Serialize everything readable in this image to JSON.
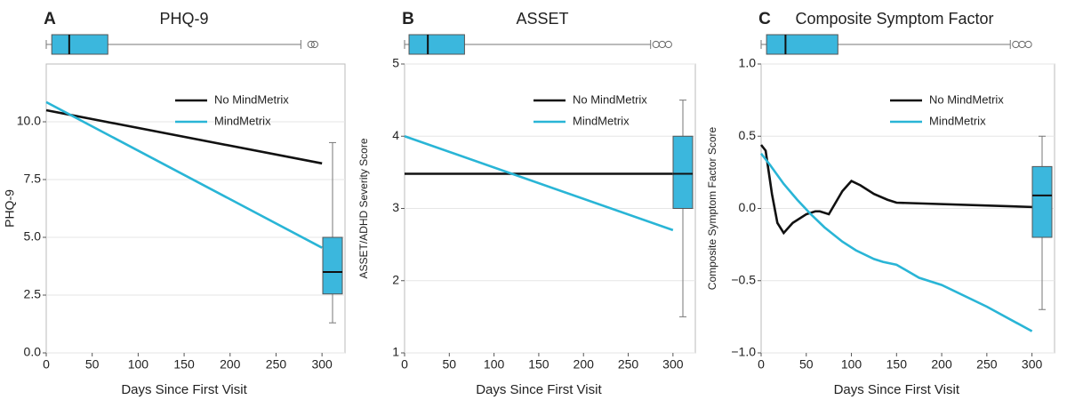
{
  "chart_data": [
    {
      "type": "line",
      "panel": "A",
      "title": "PHQ-9",
      "xlabel": "Days Since First Visit",
      "ylabel": "PHQ-9",
      "xlim": [
        0,
        325
      ],
      "xticks": [
        0,
        50,
        100,
        150,
        200,
        250,
        300
      ],
      "ylim": [
        0,
        12.5
      ],
      "yticks": [
        {
          "value": 0,
          "label": "0.0"
        },
        {
          "value": 2.5,
          "label": "2.5"
        },
        {
          "value": 5,
          "label": "5.0"
        },
        {
          "value": 7.5,
          "label": "7.5"
        },
        {
          "value": 10,
          "label": "10.0"
        }
      ],
      "grid": true,
      "legend": "upper right",
      "series": [
        {
          "name": "No MindMetrix",
          "color": "#111111",
          "x": [
            0,
            300
          ],
          "values": [
            10.5,
            8.2
          ]
        },
        {
          "name": "MindMetrix",
          "color": "#29b5d6",
          "x": [
            0,
            300
          ],
          "values": [
            10.85,
            4.55
          ]
        }
      ],
      "boxplot_y": {
        "color": "#3bb7dd",
        "whisker_low": 1.3,
        "q1": 2.55,
        "median": 3.5,
        "q3": 5.0,
        "whisker_high": 9.1
      },
      "boxplot_x": {
        "color": "#3bb7dd",
        "whisker_low": 0,
        "q1": 6,
        "median": 25,
        "q3": 67,
        "whisker_high": 277,
        "outliers": [
          288,
          292
        ]
      }
    },
    {
      "type": "line",
      "panel": "B",
      "title": "ASSET",
      "xlabel": "Days Since First Visit",
      "ylabel": "ASSET/ADHD Severity Score",
      "xlim": [
        0,
        325
      ],
      "xticks": [
        0,
        50,
        100,
        150,
        200,
        250,
        300
      ],
      "ylim": [
        1,
        5
      ],
      "yticks": [
        1,
        2,
        3,
        4,
        5
      ],
      "grid": true,
      "legend": "upper right",
      "series": [
        {
          "name": "No MindMetrix",
          "color": "#111111",
          "x": [
            0,
            300
          ],
          "values": [
            3.48,
            3.48
          ]
        },
        {
          "name": "MindMetrix",
          "color": "#29b5d6",
          "x": [
            0,
            300
          ],
          "values": [
            4.0,
            2.7
          ]
        }
      ],
      "boxplot_y": {
        "color": "#3bb7dd",
        "whisker_low": 1.5,
        "q1": 3.0,
        "median": 3.48,
        "q3": 4.0,
        "whisker_high": 4.5
      },
      "boxplot_x": {
        "color": "#3bb7dd",
        "whisker_low": 0,
        "q1": 5,
        "median": 26,
        "q3": 67,
        "whisker_high": 275,
        "outliers": [
          281,
          288,
          295
        ]
      }
    },
    {
      "type": "line",
      "panel": "C",
      "title": "Composite Symptom Factor",
      "xlabel": "Days Since First Visit",
      "ylabel": "Composite Symptom Factor Score",
      "xlim": [
        0,
        325
      ],
      "xticks": [
        0,
        50,
        100,
        150,
        200,
        250,
        300
      ],
      "ylim": [
        -1,
        1
      ],
      "yticks": [
        {
          "value": -1,
          "label": "−1.0"
        },
        {
          "value": -0.5,
          "label": "−0.5"
        },
        {
          "value": 0,
          "label": "0.0"
        },
        {
          "value": 0.5,
          "label": "0.5"
        },
        {
          "value": 1,
          "label": "1.0"
        }
      ],
      "grid": true,
      "legend": "upper right",
      "series": [
        {
          "name": "No MindMetrix",
          "color": "#111111",
          "x": [
            0,
            5,
            12,
            18,
            25,
            35,
            50,
            60,
            65,
            75,
            90,
            100,
            110,
            125,
            140,
            150,
            300
          ],
          "values": [
            0.44,
            0.4,
            0.1,
            -0.1,
            -0.17,
            -0.1,
            -0.04,
            -0.02,
            -0.02,
            -0.04,
            0.12,
            0.19,
            0.16,
            0.1,
            0.06,
            0.04,
            0.01
          ]
        },
        {
          "name": "MindMetrix",
          "color": "#29b5d6",
          "x": [
            0,
            10,
            25,
            40,
            55,
            70,
            90,
            105,
            125,
            135,
            150,
            175,
            200,
            250,
            300
          ],
          "values": [
            0.38,
            0.3,
            0.17,
            0.06,
            -0.04,
            -0.13,
            -0.23,
            -0.29,
            -0.35,
            -0.37,
            -0.39,
            -0.48,
            -0.53,
            -0.68,
            -0.85
          ]
        }
      ],
      "boxplot_y": {
        "color": "#3bb7dd",
        "whisker_low": -0.7,
        "q1": -0.2,
        "median": 0.09,
        "q3": 0.29,
        "whisker_high": 0.5
      },
      "boxplot_x": {
        "color": "#3bb7dd",
        "whisker_low": 0,
        "q1": 6,
        "median": 27,
        "q3": 85,
        "whisker_high": 276,
        "outliers": [
          282,
          289,
          296
        ]
      }
    }
  ]
}
